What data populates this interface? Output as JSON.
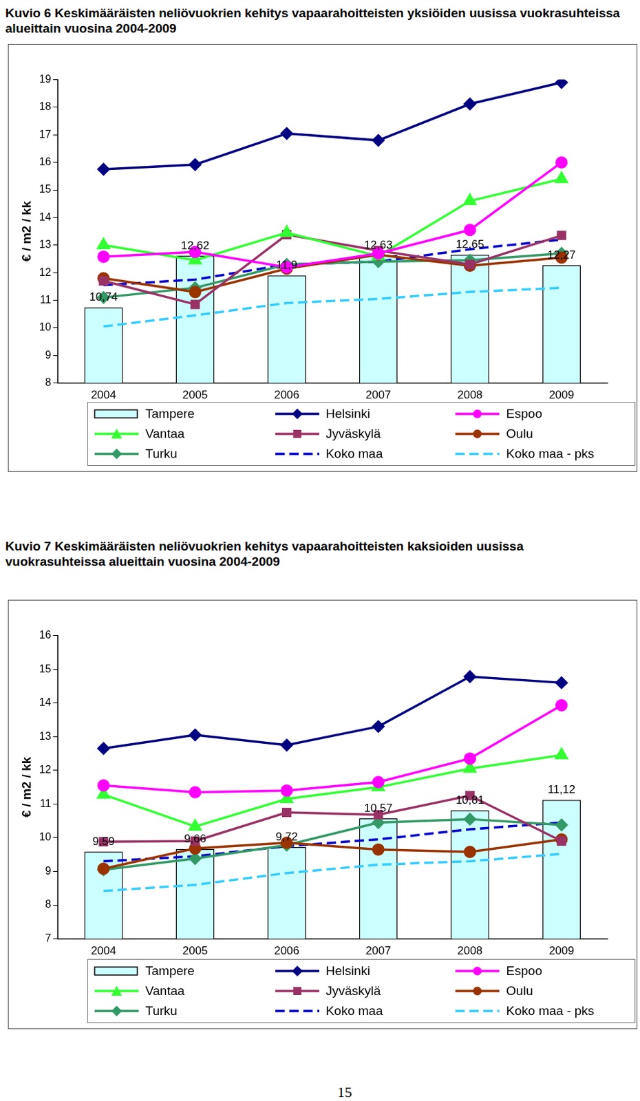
{
  "chart_data": [
    {
      "type": "bar",
      "title": "Kuvio 6 Keskimääräisten neliövuokrien kehitys vapaarahoitteisten yksiöiden uusissa vuokrasuhteissa alueittain vuosina 2004-2009",
      "y_label": "€ / m2 / kk",
      "categories": [
        "2004",
        "2005",
        "2006",
        "2007",
        "2008",
        "2009"
      ],
      "ylim": [
        8,
        19
      ],
      "yticks": [
        8,
        9,
        10,
        11,
        12,
        13,
        14,
        15,
        16,
        17,
        18,
        19
      ],
      "grid": false,
      "legend": "bottom",
      "data_labels": true,
      "series": [
        {
          "name": "Tampere",
          "type": "bar",
          "color": "#ccffff",
          "values": [
            10.74,
            12.62,
            11.9,
            12.63,
            12.65,
            12.27
          ],
          "value_labels": [
            "10,74",
            "12,62",
            "11,9",
            "12,63",
            "12,65",
            "12,27"
          ]
        },
        {
          "name": "Helsinki",
          "type": "line",
          "color": "#000080",
          "marker": "diamond",
          "line_style": "solid",
          "values": [
            15.75,
            15.92,
            17.05,
            16.8,
            18.12,
            18.9
          ]
        },
        {
          "name": "Espoo",
          "type": "line",
          "color": "#ff00ff",
          "marker": "circle",
          "line_style": "solid",
          "values": [
            12.58,
            12.75,
            12.2,
            12.7,
            13.55,
            16.0
          ]
        },
        {
          "name": "Vantaa",
          "type": "line",
          "color": "#33ff33",
          "marker": "triangle",
          "line_style": "solid",
          "values": [
            13.0,
            12.45,
            13.45,
            12.6,
            14.6,
            15.4
          ]
        },
        {
          "name": "Jyväskylä",
          "type": "line",
          "color": "#993366",
          "marker": "square",
          "line_style": "solid",
          "values": [
            11.7,
            10.85,
            13.38,
            12.8,
            12.3,
            13.35
          ]
        },
        {
          "name": "Oulu",
          "type": "line",
          "color": "#993300",
          "marker": "circle",
          "line_style": "solid",
          "values": [
            11.8,
            11.3,
            12.15,
            12.65,
            12.25,
            12.55
          ]
        },
        {
          "name": "Turku",
          "type": "line",
          "color": "#339966",
          "marker": "diamond",
          "line_style": "solid",
          "values": [
            11.1,
            11.45,
            12.3,
            12.4,
            12.45,
            12.7
          ]
        },
        {
          "name": "Koko maa",
          "type": "line",
          "color": "#0000cc",
          "marker": "none",
          "line_style": "dashed",
          "values": [
            11.55,
            11.75,
            12.3,
            12.4,
            12.85,
            13.2
          ]
        },
        {
          "name": "Koko maa - pks",
          "type": "line",
          "color": "#33ccff",
          "marker": "none",
          "line_style": "dashed",
          "values": [
            10.05,
            10.45,
            10.9,
            11.05,
            11.3,
            11.45
          ]
        }
      ]
    },
    {
      "type": "bar",
      "title": "Kuvio 7 Keskimääräisten neliövuokrien kehitys vapaarahoitteisten kaksioiden uusissa vuokrasuhteissa alueittain vuosina 2004-2009",
      "y_label": "€ / m2 / kk",
      "categories": [
        "2004",
        "2005",
        "2006",
        "2007",
        "2008",
        "2009"
      ],
      "ylim": [
        7,
        16
      ],
      "yticks": [
        7,
        8,
        9,
        10,
        11,
        12,
        13,
        14,
        15,
        16
      ],
      "grid": false,
      "legend": "bottom",
      "data_labels": true,
      "series": [
        {
          "name": "Tampere",
          "type": "bar",
          "color": "#ccffff",
          "values": [
            9.59,
            9.66,
            9.72,
            10.57,
            10.81,
            11.12
          ],
          "value_labels": [
            "9,59",
            "9,66",
            "9,72",
            "10,57",
            "10,81",
            "11,12"
          ]
        },
        {
          "name": "Helsinki",
          "type": "line",
          "color": "#000080",
          "marker": "diamond",
          "line_style": "solid",
          "values": [
            12.65,
            13.05,
            12.75,
            13.3,
            14.78,
            14.6
          ]
        },
        {
          "name": "Espoo",
          "type": "line",
          "color": "#ff00ff",
          "marker": "circle",
          "line_style": "solid",
          "values": [
            11.55,
            11.35,
            11.4,
            11.65,
            12.35,
            13.93
          ]
        },
        {
          "name": "Vantaa",
          "type": "line",
          "color": "#33ff33",
          "marker": "triangle",
          "line_style": "solid",
          "values": [
            11.28,
            10.33,
            11.15,
            11.5,
            12.05,
            12.45
          ]
        },
        {
          "name": "Jyväskylä",
          "type": "line",
          "color": "#993366",
          "marker": "square",
          "line_style": "solid",
          "values": [
            9.88,
            9.9,
            10.75,
            10.68,
            11.25,
            9.9
          ]
        },
        {
          "name": "Oulu",
          "type": "line",
          "color": "#993300",
          "marker": "circle",
          "line_style": "solid",
          "values": [
            9.08,
            9.68,
            9.85,
            9.65,
            9.58,
            9.95
          ]
        },
        {
          "name": "Turku",
          "type": "line",
          "color": "#339966",
          "marker": "diamond",
          "line_style": "solid",
          "values": [
            9.05,
            9.38,
            9.78,
            10.45,
            10.55,
            10.38
          ]
        },
        {
          "name": "Koko maa",
          "type": "line",
          "color": "#0000cc",
          "marker": "none",
          "line_style": "dashed",
          "values": [
            9.3,
            9.45,
            9.75,
            9.95,
            10.25,
            10.45
          ]
        },
        {
          "name": "Koko maa - pks",
          "type": "line",
          "color": "#33ccff",
          "marker": "none",
          "line_style": "dashed",
          "values": [
            8.42,
            8.6,
            8.95,
            9.2,
            9.3,
            9.52
          ]
        }
      ]
    }
  ],
  "page_number": "15"
}
